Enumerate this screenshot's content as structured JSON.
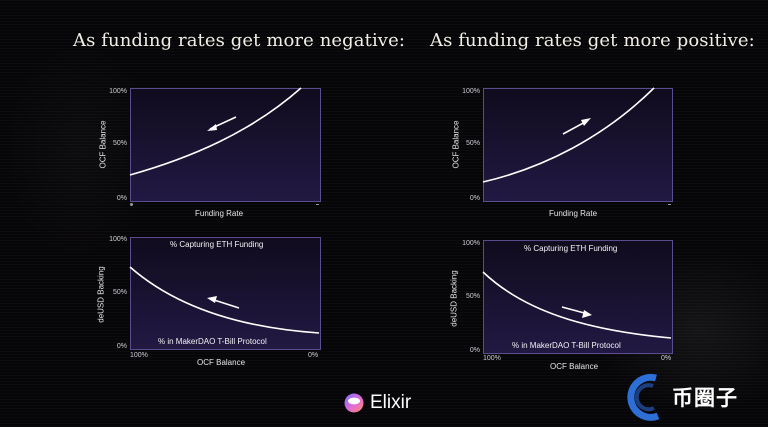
{
  "headings": {
    "negative": "As funding rates get more negative:",
    "positive": "As funding rates get more positive:"
  },
  "common": {
    "ocf_balance_axis": "OCF Balance",
    "funding_rate_axis": "Funding Rate",
    "deusd_backing_axis": "deUSD Backing",
    "tick_100": "100%",
    "tick_50": "50%",
    "tick_0": "0%",
    "capturing_label": "% Capturing ETH Funding",
    "makerdao_label": "% in MakerDAO T-Bill Protocol"
  },
  "arrows": {
    "negative": "toward-left",
    "positive": "toward-right"
  },
  "branding": {
    "logo_name": "Elixir",
    "watermark": "币圈子"
  },
  "colors": {
    "panel_border": "#5a4c8f",
    "curve": "#ffffff",
    "heading": "#f1eee6"
  }
}
